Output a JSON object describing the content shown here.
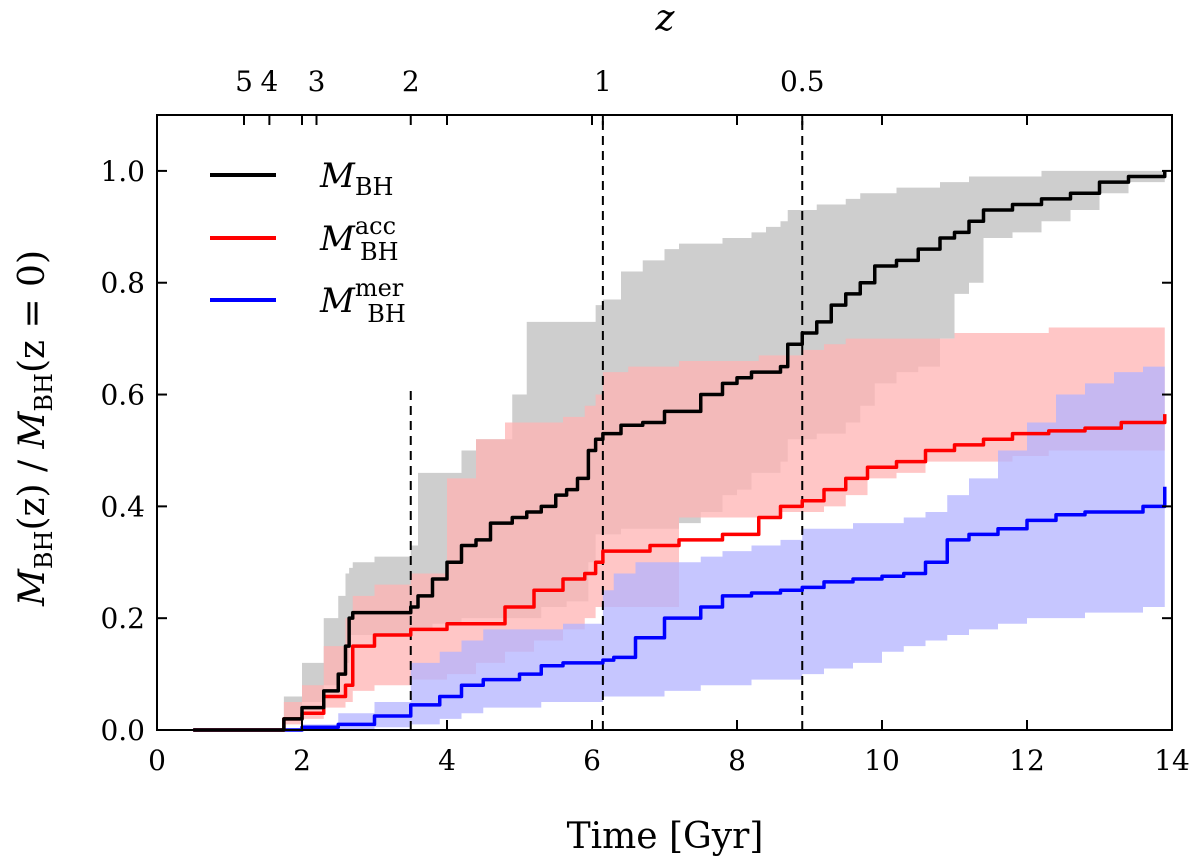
{
  "chart_data": {
    "type": "area",
    "xlabel": "Time [Gyr]",
    "ylabel_parts": {
      "m1": "M",
      "sub1": "BH",
      "mid": "(z) / ",
      "m2": "M",
      "sub2": "BH",
      "tail": "(z = 0)"
    },
    "top_axis_label": "z",
    "xlim": [
      0,
      14
    ],
    "ylim": [
      0,
      1.1
    ],
    "x_ticks": [
      0,
      2,
      4,
      6,
      8,
      10,
      12,
      14
    ],
    "x_tick_labels": [
      "0",
      "2",
      "4",
      "6",
      "8",
      "10",
      "12",
      "14"
    ],
    "y_ticks": [
      0,
      0.2,
      0.4,
      0.6,
      0.8,
      1.0
    ],
    "y_tick_labels": [
      "0.0",
      "0.2",
      "0.4",
      "0.6",
      "0.8",
      "1.0"
    ],
    "top_ticks": [
      {
        "label": "5",
        "time": 1.2
      },
      {
        "label": "4",
        "time": 1.55
      },
      {
        "label": "3",
        "time": 2.2
      },
      {
        "label": "2",
        "time": 3.5
      },
      {
        "label": "1",
        "time": 6.15
      },
      {
        "label": "0.5",
        "time": 8.9
      }
    ],
    "vlines": [
      {
        "x": 3.5,
        "ymax": 0.61
      },
      {
        "x": 6.15,
        "ymax": 1.1
      },
      {
        "x": 8.9,
        "ymax": 1.1
      }
    ],
    "legend": [
      {
        "key": "mbh",
        "label": "M",
        "sub": "BH",
        "sup": "",
        "color": "#000000"
      },
      {
        "key": "acc",
        "label": "M",
        "sub": "BH",
        "sup": "acc",
        "color": "#ff0000"
      },
      {
        "key": "mer",
        "label": "M",
        "sub": "BH",
        "sup": "mer",
        "color": "#0000ff"
      }
    ],
    "series": [
      {
        "key": "mbh",
        "name": "M_BH",
        "color": "#000000",
        "x": [
          0.5,
          1.5,
          1.75,
          2.0,
          2.3,
          2.5,
          2.6,
          2.65,
          2.7,
          3.0,
          3.5,
          3.6,
          3.8,
          4.0,
          4.2,
          4.4,
          4.6,
          4.9,
          5.1,
          5.3,
          5.5,
          5.65,
          5.8,
          5.95,
          6.05,
          6.15,
          6.4,
          6.7,
          7.0,
          7.2,
          7.5,
          7.8,
          8.0,
          8.2,
          8.4,
          8.6,
          8.7,
          8.9,
          9.1,
          9.3,
          9.5,
          9.7,
          9.9,
          10.2,
          10.5,
          10.8,
          11.0,
          11.2,
          11.4,
          11.8,
          12.2,
          12.6,
          13.0,
          13.4,
          13.9
        ],
        "values": [
          0.0,
          0.0,
          0.02,
          0.04,
          0.07,
          0.1,
          0.15,
          0.2,
          0.21,
          0.21,
          0.22,
          0.24,
          0.27,
          0.3,
          0.33,
          0.34,
          0.37,
          0.38,
          0.39,
          0.4,
          0.42,
          0.43,
          0.45,
          0.5,
          0.52,
          0.53,
          0.545,
          0.55,
          0.57,
          0.57,
          0.6,
          0.62,
          0.63,
          0.64,
          0.64,
          0.65,
          0.69,
          0.71,
          0.73,
          0.76,
          0.78,
          0.8,
          0.83,
          0.84,
          0.86,
          0.88,
          0.89,
          0.91,
          0.93,
          0.94,
          0.95,
          0.96,
          0.98,
          0.99,
          1.0
        ],
        "band_lower": [
          0.0,
          0.0,
          0.02,
          0.05,
          0.08,
          0.1,
          0.12,
          0.17,
          0.17,
          0.17,
          0.18,
          0.18,
          0.19,
          0.19,
          0.2,
          0.2,
          0.2,
          0.2,
          0.2,
          0.22,
          0.22,
          0.23,
          0.23,
          0.3,
          0.35,
          0.35,
          0.36,
          0.36,
          0.36,
          0.37,
          0.39,
          0.42,
          0.43,
          0.46,
          0.46,
          0.48,
          0.52,
          0.52,
          0.53,
          0.53,
          0.55,
          0.58,
          0.62,
          0.64,
          0.65,
          0.7,
          0.78,
          0.8,
          0.88,
          0.89,
          0.91,
          0.93,
          0.96,
          0.98,
          1.0
        ],
        "band_upper": [
          0.0,
          0.0,
          0.06,
          0.12,
          0.2,
          0.24,
          0.28,
          0.29,
          0.3,
          0.31,
          0.33,
          0.46,
          0.46,
          0.46,
          0.5,
          0.52,
          0.52,
          0.6,
          0.73,
          0.73,
          0.73,
          0.73,
          0.73,
          0.73,
          0.76,
          0.77,
          0.82,
          0.84,
          0.86,
          0.87,
          0.87,
          0.88,
          0.88,
          0.89,
          0.9,
          0.91,
          0.93,
          0.93,
          0.94,
          0.94,
          0.95,
          0.96,
          0.96,
          0.97,
          0.97,
          0.98,
          0.98,
          0.99,
          0.99,
          0.99,
          1.0,
          1.0,
          1.0,
          1.0,
          1.0
        ]
      },
      {
        "key": "acc",
        "name": "M_BH^acc",
        "color": "#ff0000",
        "x": [
          0.5,
          1.5,
          1.75,
          2.0,
          2.3,
          2.6,
          2.7,
          3.0,
          3.5,
          4.0,
          4.4,
          4.8,
          5.2,
          5.6,
          5.9,
          6.05,
          6.15,
          6.5,
          6.8,
          7.2,
          7.8,
          8.3,
          8.6,
          8.9,
          9.2,
          9.5,
          9.8,
          10.2,
          10.6,
          11.0,
          11.4,
          11.8,
          12.3,
          12.8,
          13.3,
          13.9
        ],
        "values": [
          0.0,
          0.0,
          0.02,
          0.03,
          0.06,
          0.08,
          0.15,
          0.17,
          0.18,
          0.19,
          0.19,
          0.22,
          0.25,
          0.27,
          0.28,
          0.3,
          0.32,
          0.32,
          0.33,
          0.34,
          0.35,
          0.38,
          0.4,
          0.41,
          0.43,
          0.45,
          0.47,
          0.48,
          0.5,
          0.51,
          0.52,
          0.53,
          0.535,
          0.54,
          0.55,
          0.565
        ],
        "band_lower": [
          0.0,
          0.0,
          0.01,
          0.02,
          0.04,
          0.05,
          0.07,
          0.08,
          0.09,
          0.1,
          0.12,
          0.14,
          0.16,
          0.18,
          0.2,
          0.22,
          0.22,
          0.22,
          0.22,
          0.38,
          0.38,
          0.38,
          0.39,
          0.39,
          0.4,
          0.42,
          0.45,
          0.46,
          0.48,
          0.48,
          0.48,
          0.49,
          0.5,
          0.5,
          0.5,
          0.5
        ],
        "band_upper": [
          0.0,
          0.0,
          0.05,
          0.08,
          0.15,
          0.2,
          0.24,
          0.26,
          0.28,
          0.45,
          0.52,
          0.55,
          0.55,
          0.56,
          0.58,
          0.6,
          0.64,
          0.65,
          0.65,
          0.66,
          0.66,
          0.67,
          0.67,
          0.68,
          0.69,
          0.7,
          0.7,
          0.7,
          0.7,
          0.71,
          0.71,
          0.71,
          0.72,
          0.72,
          0.72,
          0.72
        ]
      },
      {
        "key": "mer",
        "name": "M_BH^mer",
        "color": "#0000ff",
        "x": [
          0.5,
          1.5,
          2.0,
          2.5,
          3.0,
          3.5,
          3.9,
          4.2,
          4.5,
          5.0,
          5.3,
          5.6,
          6.15,
          6.3,
          6.6,
          7.0,
          7.5,
          7.8,
          8.2,
          8.6,
          8.9,
          9.2,
          9.6,
          10.0,
          10.3,
          10.6,
          10.9,
          11.2,
          11.6,
          12.0,
          12.4,
          12.8,
          13.2,
          13.6,
          13.9
        ],
        "values": [
          0.0,
          0.0,
          0.005,
          0.01,
          0.025,
          0.045,
          0.06,
          0.08,
          0.09,
          0.1,
          0.115,
          0.12,
          0.125,
          0.13,
          0.165,
          0.2,
          0.22,
          0.24,
          0.245,
          0.25,
          0.255,
          0.265,
          0.27,
          0.275,
          0.28,
          0.3,
          0.34,
          0.35,
          0.36,
          0.375,
          0.385,
          0.39,
          0.39,
          0.4,
          0.435
        ],
        "band_lower": [
          0.0,
          0.0,
          0.0,
          0.0,
          0.005,
          0.01,
          0.02,
          0.03,
          0.04,
          0.04,
          0.05,
          0.05,
          0.06,
          0.06,
          0.06,
          0.07,
          0.08,
          0.08,
          0.09,
          0.09,
          0.1,
          0.11,
          0.12,
          0.14,
          0.15,
          0.16,
          0.17,
          0.18,
          0.19,
          0.2,
          0.2,
          0.21,
          0.21,
          0.22,
          0.22
        ],
        "band_upper": [
          0.0,
          0.0,
          0.01,
          0.03,
          0.05,
          0.12,
          0.14,
          0.16,
          0.18,
          0.18,
          0.18,
          0.19,
          0.25,
          0.28,
          0.3,
          0.3,
          0.31,
          0.32,
          0.33,
          0.34,
          0.36,
          0.36,
          0.37,
          0.37,
          0.38,
          0.39,
          0.42,
          0.45,
          0.5,
          0.55,
          0.6,
          0.62,
          0.64,
          0.65,
          0.66
        ]
      }
    ],
    "band_colors": {
      "mbh": "#bdbdbd",
      "acc": "#ffb3b3",
      "mer": "#b3b3ff"
    }
  }
}
